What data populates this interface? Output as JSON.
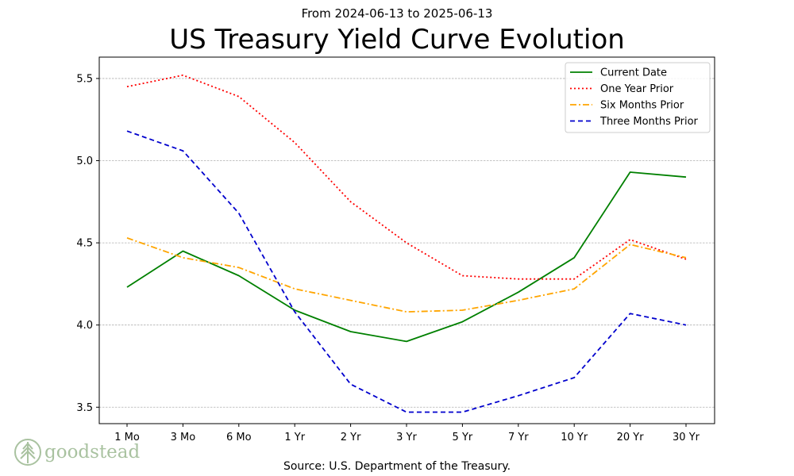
{
  "subtitle": "From 2024-06-13 to 2025-06-13",
  "source": "Source: U.S. Department of the Treasury.",
  "logo": {
    "text": "goodstead",
    "icon": "pine-tree-icon",
    "color": "#a9c2a0"
  },
  "chart_data": {
    "type": "line",
    "title": "US Treasury Yield Curve Evolution",
    "xlabel": "",
    "ylabel": "",
    "categories": [
      "1 Mo",
      "3 Mo",
      "6 Mo",
      "1 Yr",
      "2 Yr",
      "3 Yr",
      "5 Yr",
      "7 Yr",
      "10 Yr",
      "20 Yr",
      "30 Yr"
    ],
    "ylim": [
      3.4,
      5.63
    ],
    "yticks": [
      "3.5",
      "4.0",
      "4.5",
      "5.0",
      "5.5"
    ],
    "grid": "horizontal",
    "legend_position": "top-right",
    "series": [
      {
        "name": "Current Date",
        "color": "#008000",
        "style": "solid",
        "values": [
          4.23,
          4.45,
          4.3,
          4.09,
          3.96,
          3.9,
          4.02,
          4.2,
          4.41,
          4.93,
          4.9
        ]
      },
      {
        "name": "One Year Prior",
        "color": "#ff0000",
        "style": "dotted",
        "values": [
          5.45,
          5.52,
          5.39,
          5.11,
          4.75,
          4.5,
          4.3,
          4.28,
          4.28,
          4.52,
          4.4
        ]
      },
      {
        "name": "Six Months Prior",
        "color": "#ffa500",
        "style": "dashdot",
        "values": [
          4.53,
          4.41,
          4.35,
          4.22,
          4.15,
          4.08,
          4.09,
          4.15,
          4.22,
          4.49,
          4.41
        ]
      },
      {
        "name": "Three Months Prior",
        "color": "#0000cd",
        "style": "dashed",
        "values": [
          5.18,
          5.06,
          4.68,
          4.08,
          3.64,
          3.47,
          3.47,
          3.57,
          3.68,
          4.07,
          4.0
        ]
      }
    ]
  }
}
